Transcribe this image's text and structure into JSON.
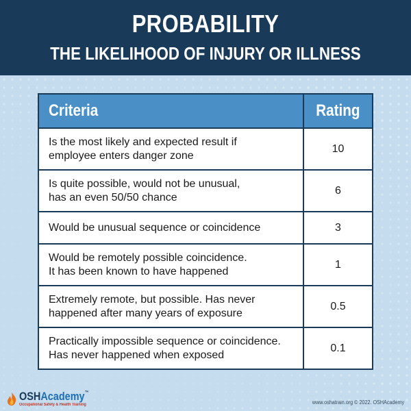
{
  "header": {
    "title": "PROBABILITY",
    "subtitle": "THE LIKELIHOOD OF INJURY OR ILLNESS"
  },
  "table": {
    "columns": [
      "Criteria",
      "Rating"
    ],
    "rows": [
      {
        "criteria_line1": "Is the most likely and expected result if",
        "criteria_line2": "employee enters danger zone",
        "rating": "10"
      },
      {
        "criteria_line1": "Is quite possible, would not be unusual,",
        "criteria_line2": "has an even 50/50 chance",
        "rating": "6"
      },
      {
        "criteria_line1": "Would be unusual sequence or coincidence",
        "criteria_line2": "",
        "rating": "3"
      },
      {
        "criteria_line1": "Would be remotely possible coincidence.",
        "criteria_line2": "It has been known to have happened",
        "rating": "1"
      },
      {
        "criteria_line1": "Extremely remote, but possible. Has never",
        "criteria_line2": "happened after many years of exposure",
        "rating": "0.5"
      },
      {
        "criteria_line1": "Practically impossible sequence or coincidence.",
        "criteria_line2": "Has never happened when exposed",
        "rating": "0.1"
      }
    ]
  },
  "footer": {
    "logo_osh": "OSH",
    "logo_academy": "Academy",
    "logo_tm": "™",
    "logo_tagline": "Occupational Safety & Health Training",
    "copyright": "www.oshatrain.org © 2022. OSHAcademy"
  },
  "colors": {
    "header_bg": "#1a3a5a",
    "table_header_bg": "#4a90c6",
    "page_bg": "#c4dcee",
    "flame_orange": "#e8731a"
  },
  "icons": {
    "logo": "flame-icon"
  }
}
